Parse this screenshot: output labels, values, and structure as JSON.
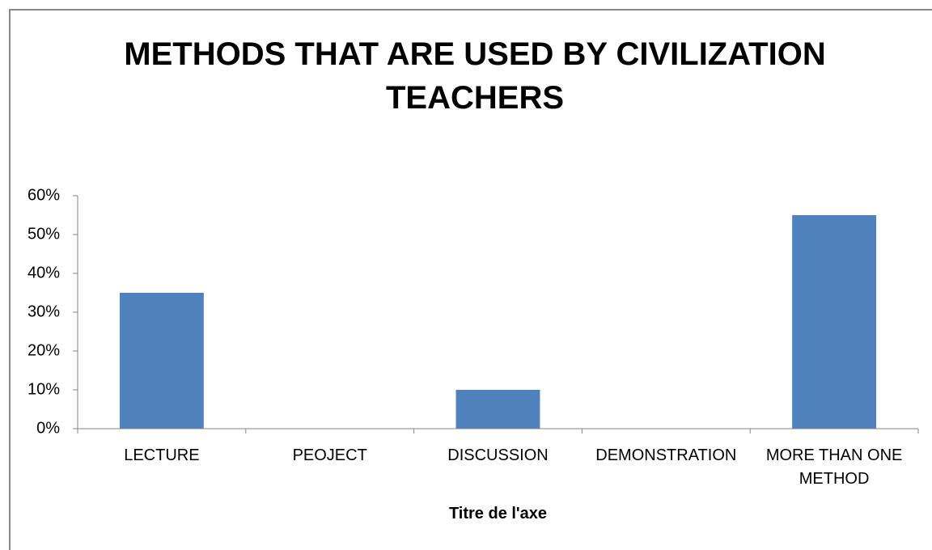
{
  "chart_data": {
    "type": "bar",
    "title": "METHODS THAT ARE USED BY CIVILIZATION TEACHERS",
    "x_label": "Titre de l'axe",
    "categories": [
      "LECTURE",
      "PEOJECT",
      "DISCUSSION",
      "DEMONSTRATION",
      "MORE THAN ONE METHOD"
    ],
    "values": [
      35,
      0,
      10,
      0,
      55
    ],
    "color": "#4f81bd",
    "ylim": [
      0,
      60
    ],
    "yticks": [
      {
        "value": 0,
        "label": "0%"
      },
      {
        "value": 10,
        "label": "10%"
      },
      {
        "value": 20,
        "label": "20%"
      },
      {
        "value": 30,
        "label": "30%"
      },
      {
        "value": 40,
        "label": "40%"
      },
      {
        "value": 50,
        "label": "50%"
      },
      {
        "value": 60,
        "label": "60%"
      }
    ],
    "grid": false
  }
}
